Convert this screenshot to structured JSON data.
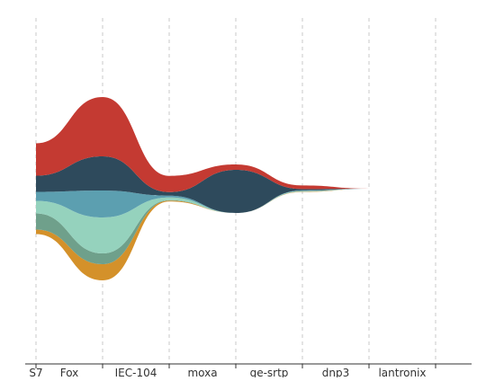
{
  "chart_data": {
    "type": "area",
    "subtype": "themeriver",
    "baseline": "center",
    "title": "",
    "xlabel": "",
    "ylabel": "",
    "grid": true,
    "legend": "none",
    "categories": [
      "S7",
      "Fox",
      "IEC-104",
      "moxa",
      "ge-srtp",
      "dnp3",
      "lantronix"
    ],
    "series": [
      {
        "color": "#d4912a",
        "values": [
          5,
          18,
          1,
          0,
          0.4,
          0,
          0
        ]
      },
      {
        "color": "#6fa08b",
        "values": [
          18,
          12,
          0.5,
          0,
          0.3,
          0,
          0
        ]
      },
      {
        "color": "#95d2bd",
        "values": [
          14,
          40,
          3,
          0,
          0.6,
          0,
          0
        ]
      },
      {
        "color": "#5c9fb0",
        "values": [
          10,
          30,
          2,
          0,
          0.5,
          0,
          0
        ]
      },
      {
        "color": "#2e4a5c",
        "values": [
          18,
          38,
          4,
          48,
          1.5,
          0,
          0
        ]
      },
      {
        "color": "#c43a32",
        "values": [
          36,
          66,
          18,
          6,
          4,
          0,
          0
        ]
      }
    ],
    "label_color": "#111111"
  }
}
